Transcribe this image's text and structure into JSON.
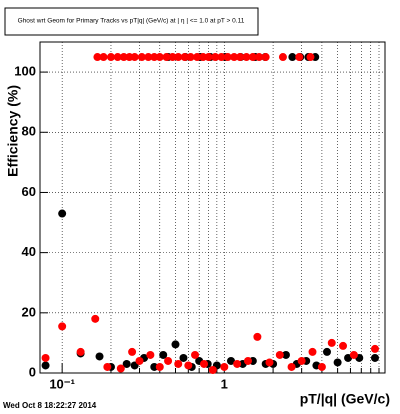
{
  "chart_data": {
    "type": "scatter",
    "title": "Ghost wrt Geom for Primary Tracks vs pT|q| (GeV/c) at |  η | <= 1.0 at pT > 0.11",
    "y_label": "Efficiency (%)",
    "x_label": "pT/|q| (GeV/c)",
    "timestamp": "Wed Oct  8 18:22:27 2014",
    "log_x": true,
    "grid": true,
    "xlim": [
      0.073,
      9.8
    ],
    "ylim": [
      0,
      110
    ],
    "xticks": [
      {
        "value": 0.1,
        "label": "10⁻¹"
      },
      1
    ],
    "xgrid_ticks": [
      0.2,
      0.3,
      0.4,
      0.5,
      0.6,
      0.7,
      0.8,
      0.9,
      2,
      3,
      4,
      5,
      6,
      7,
      8,
      9
    ],
    "yticks": [
      0,
      20,
      40,
      60,
      80,
      100
    ],
    "series": [
      {
        "name": "black",
        "color": "#000000",
        "x": [
          0.079,
          0.1,
          0.13,
          0.17,
          0.2,
          0.25,
          0.28,
          0.32,
          0.37,
          0.42,
          0.5,
          0.56,
          0.63,
          0.7,
          0.79,
          0.9,
          1.1,
          1.3,
          1.5,
          1.8,
          2.0,
          2.4,
          2.8,
          3.2,
          3.7,
          4.3,
          5,
          5.8,
          6.8,
          8.5,
          0.45,
          0.575,
          0.71,
          0.82,
          1.01,
          1.26,
          1.55,
          1.79,
          2.63,
          2.94,
          3.3,
          3.64
        ],
        "values": [
          2.5,
          53,
          6.5,
          5.5,
          2,
          3,
          2.5,
          5,
          2,
          6,
          9.5,
          5,
          2,
          4,
          3,
          2.5,
          4,
          3,
          4,
          3,
          3,
          6,
          3,
          4,
          2.5,
          7,
          3.5,
          5,
          5,
          5,
          105,
          105,
          105,
          105,
          105,
          105,
          105,
          105,
          105,
          105,
          105,
          105
        ]
      },
      {
        "name": "red",
        "color": "#ff0000",
        "x": [
          0.079,
          0.1,
          0.13,
          0.16,
          0.19,
          0.23,
          0.27,
          0.3,
          0.35,
          0.4,
          0.45,
          0.52,
          0.6,
          0.66,
          0.75,
          0.85,
          1.0,
          1.2,
          1.4,
          1.6,
          1.9,
          2.2,
          2.6,
          3,
          3.5,
          4,
          4.6,
          5.4,
          6.3,
          8.5,
          0.165,
          0.18,
          0.2,
          0.22,
          0.24,
          0.26,
          0.28,
          0.31,
          0.34,
          0.37,
          0.4,
          0.44,
          0.48,
          0.52,
          0.57,
          0.62,
          0.68,
          0.74,
          0.8,
          0.88,
          0.96,
          1.05,
          1.15,
          1.25,
          1.37,
          1.5,
          1.64,
          1.8,
          2.3,
          2.9,
          3.4
        ],
        "values": [
          5,
          15.5,
          7,
          18,
          2,
          1.5,
          7,
          4,
          6,
          2,
          4,
          3,
          2.5,
          6,
          3,
          1,
          2,
          3,
          4,
          12,
          3.5,
          6,
          2,
          4,
          7,
          2,
          10,
          9,
          6,
          8,
          105,
          105,
          105,
          105,
          105,
          105,
          105,
          105,
          105,
          105,
          105,
          105,
          105,
          105,
          105,
          105,
          105,
          105,
          105,
          105,
          105,
          105,
          105,
          105,
          105,
          105,
          105,
          105,
          105,
          105,
          105
        ]
      }
    ]
  }
}
